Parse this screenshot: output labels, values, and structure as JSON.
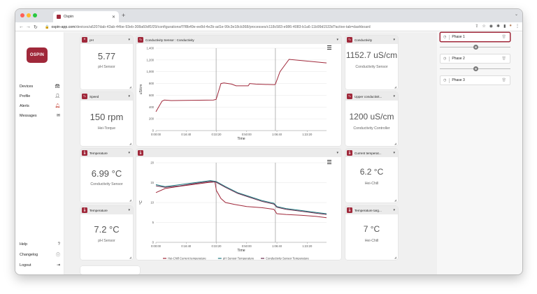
{
  "browser": {
    "tab_title": "Ospin",
    "url_host": "ospin-app.com",
    "url_path": "/devices/a6207dab-43ab-44be-93eb-308a60df1f29/configurations/f7f8b49e-ee8d-4e2b-ad1e-99c3e18cb368/processes/c118c583-e986-4083-b1a6-11b99d1533d?active-tab=dashboard"
  },
  "sidebar": {
    "logo": "OSPIN",
    "items": [
      {
        "label": "Devices"
      },
      {
        "label": "Profile"
      },
      {
        "label": "Alerts"
      },
      {
        "label": "Messages"
      }
    ],
    "bottom": [
      {
        "label": "Help"
      },
      {
        "label": "Changelog"
      },
      {
        "label": "Logout"
      }
    ]
  },
  "cards": {
    "ph": {
      "title": "pH",
      "value": "5.77",
      "subtitle": "pH Sensor"
    },
    "speed": {
      "title": "Speed",
      "value": "150 rpm",
      "subtitle": "Hei-Torque"
    },
    "temp1": {
      "title": "Temperature",
      "value": "6.99 °C",
      "subtitle": "Conductivity Sensor"
    },
    "temp2": {
      "title": "Temperature",
      "value": "7.2 °C",
      "subtitle": "pH Sensor"
    },
    "cond": {
      "title": "Conductivity",
      "value": "1152.7 uS/cm",
      "subtitle": "Conductivity Sensor"
    },
    "uppercond": {
      "title": "Upper conductivit...",
      "value": "1200 uS/cm",
      "subtitle": "Conductivity Controller"
    },
    "curtemp": {
      "title": "Current temperat...",
      "value": "6.2 °C",
      "subtitle": "Hei-Chill"
    },
    "temptarget": {
      "title": "Temperature targ...",
      "value": "7 °C",
      "subtitle": "Hei-Chill"
    }
  },
  "phases": [
    {
      "label": "Phase 1"
    },
    {
      "label": "Phase 2"
    },
    {
      "label": "Phase 3"
    }
  ],
  "chart_data": [
    {
      "type": "line",
      "title": "Conductivity Sensor : Conductivity",
      "xlabel": "Time",
      "ylabel": "uS/cm",
      "x_ticks": [
        "0:00:00",
        "0:16:40",
        "0:33:20",
        "0:50:00",
        "1:06:40",
        "1:23:20"
      ],
      "y_ticks": [
        "0",
        "200",
        "400",
        "600",
        "800",
        "1,000",
        "1,200",
        "1,400"
      ],
      "xlim": [
        0,
        5640
      ],
      "ylim": [
        0,
        1400
      ],
      "phase_markers": [
        1990,
        3950
      ],
      "series": [
        {
          "color": "#a0283a",
          "x": [
            0,
            200,
            280,
            500,
            1900,
            1990,
            2150,
            2250,
            2500,
            2650,
            3050,
            3100,
            3300,
            3920,
            3950,
            4100,
            4400,
            5640
          ],
          "y": [
            320,
            500,
            520,
            510,
            520,
            530,
            800,
            810,
            790,
            760,
            760,
            800,
            790,
            780,
            790,
            1000,
            1210,
            1150
          ]
        }
      ]
    },
    {
      "type": "line",
      "title": "",
      "xlabel": "Time",
      "ylabel": "°C",
      "x_ticks": [
        "0:00:00",
        "0:16:40",
        "0:33:20",
        "0:50:00",
        "1:06:40",
        "1:23:20"
      ],
      "y_ticks": [
        "0",
        "5",
        "10",
        "15",
        "20"
      ],
      "xlim": [
        0,
        5640
      ],
      "ylim": [
        0,
        20
      ],
      "phase_markers": [
        1990,
        3950
      ],
      "series": [
        {
          "name": "Hei-Chill Current temperature",
          "color": "#a0283a",
          "x": [
            0,
            300,
            700,
            1200,
            1700,
            1950,
            2000,
            2150,
            2300,
            2600,
            3000,
            3500,
            3900,
            4000,
            4300,
            4800,
            5300,
            5640
          ],
          "y": [
            12.5,
            13.5,
            14,
            14.5,
            15,
            15.2,
            13,
            11,
            10,
            9.5,
            9,
            8.7,
            8.3,
            7.2,
            7,
            6.8,
            6.5,
            6.2
          ]
        },
        {
          "name": "pH Sensor Temperature",
          "color": "#1e7a80",
          "x": [
            0,
            300,
            800,
            1300,
            1800,
            1990,
            2300,
            2700,
            3100,
            3500,
            3900,
            4000,
            4300,
            4800,
            5300,
            5640
          ],
          "y": [
            14.5,
            14,
            14.5,
            15,
            15.5,
            15.3,
            14,
            12.5,
            11.5,
            10.5,
            9.8,
            9,
            8.5,
            8,
            7.5,
            7.2
          ]
        },
        {
          "name": "Conductivity Sensor Temperature",
          "color": "#6a3050",
          "x": [
            0,
            300,
            800,
            1300,
            1800,
            1990,
            2300,
            2700,
            3100,
            3500,
            3900,
            4000,
            4300,
            4800,
            5300,
            5640
          ],
          "y": [
            14.2,
            13.8,
            14.2,
            14.8,
            15.3,
            15.1,
            13.8,
            12.3,
            11.3,
            10.3,
            9.6,
            8.8,
            8.3,
            7.8,
            7.3,
            7
          ]
        }
      ]
    }
  ]
}
